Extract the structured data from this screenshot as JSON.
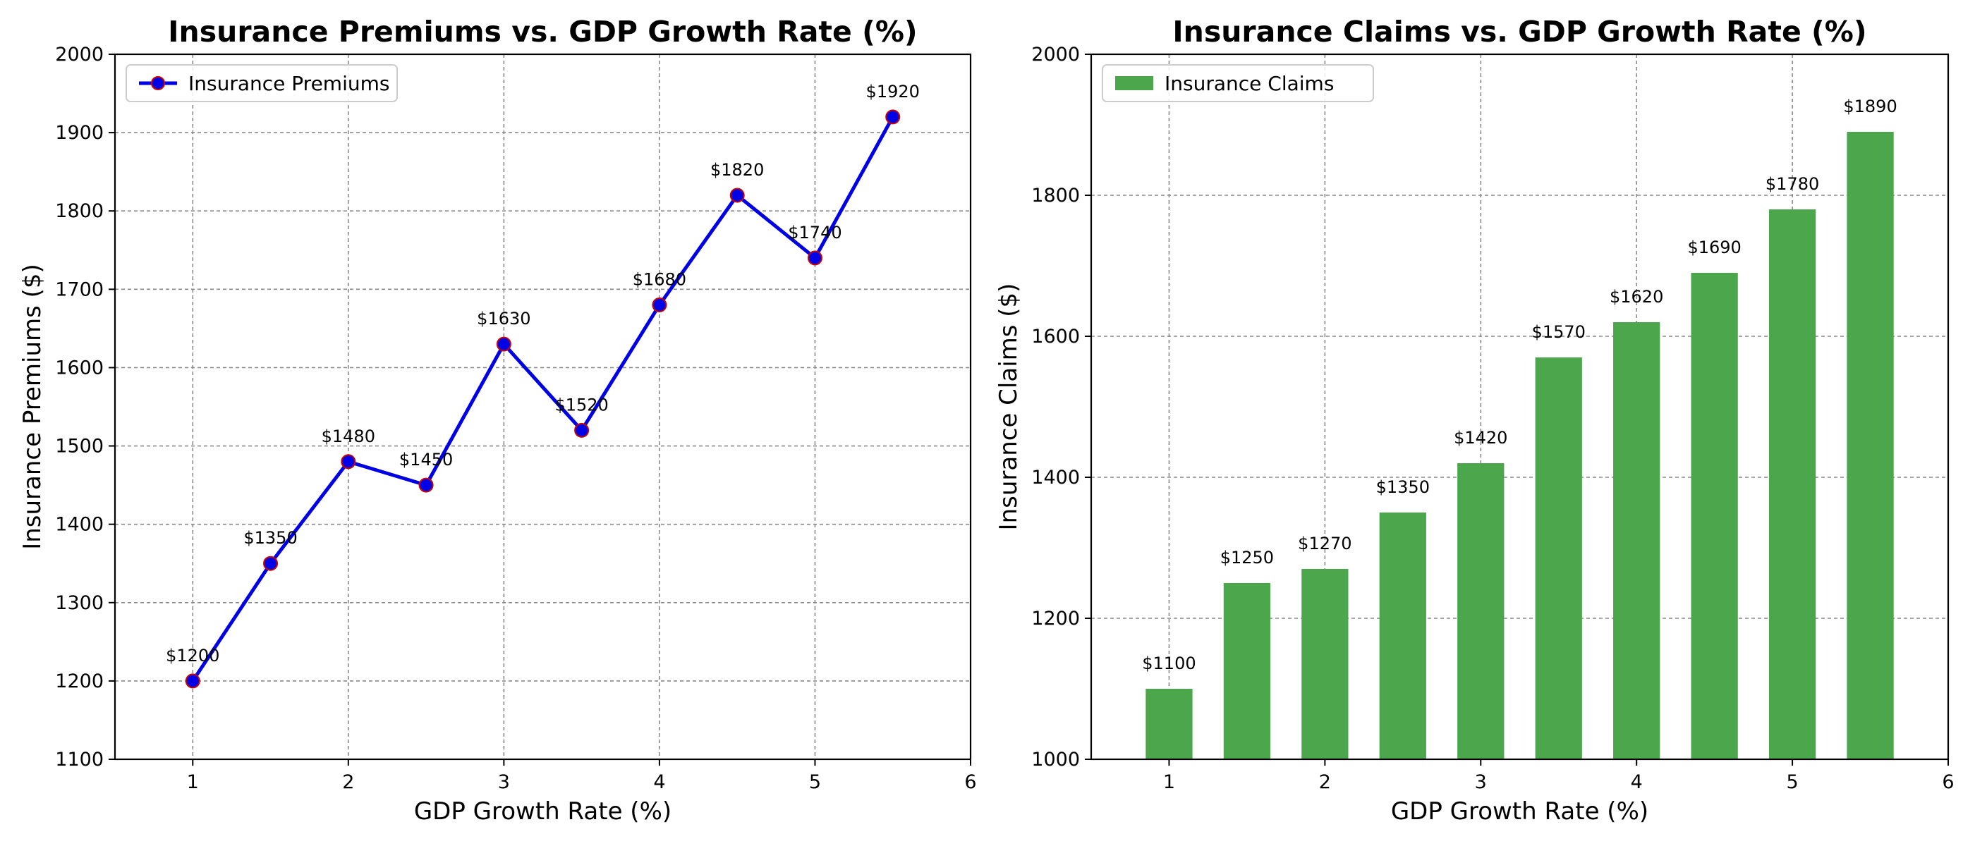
{
  "chart_data": [
    {
      "type": "line",
      "title": "Insurance Premiums vs. GDP Growth Rate (%)",
      "xlabel": "GDP Growth Rate (%)",
      "ylabel": "Insurance Premiums ($)",
      "xlim": [
        0.5,
        6
      ],
      "ylim": [
        1100,
        2000
      ],
      "xticks": [
        1,
        2,
        3,
        4,
        5,
        6
      ],
      "yticks": [
        1100,
        1200,
        1300,
        1400,
        1500,
        1600,
        1700,
        1800,
        1900,
        2000
      ],
      "grid": true,
      "legend_position": "upper-left",
      "series": [
        {
          "name": "Insurance Premiums",
          "color": "#0000e6",
          "marker_edge_color": "#cc0000",
          "x": [
            1,
            1.5,
            2,
            2.5,
            3,
            3.5,
            4,
            4.5,
            5,
            5.5
          ],
          "values": [
            1200,
            1350,
            1480,
            1450,
            1630,
            1520,
            1680,
            1820,
            1740,
            1920
          ],
          "labels": [
            "$1200",
            "$1350",
            "$1480",
            "$1450",
            "$1630",
            "$1520",
            "$1680",
            "$1820",
            "$1740",
            "$1920"
          ]
        }
      ]
    },
    {
      "type": "bar",
      "title": "Insurance Claims vs. GDP Growth Rate (%)",
      "xlabel": "GDP Growth Rate (%)",
      "ylabel": "Insurance Claims ($)",
      "xlim": [
        0.5,
        6
      ],
      "ylim": [
        1000,
        2000
      ],
      "xticks": [
        1,
        2,
        3,
        4,
        5,
        6
      ],
      "yticks": [
        1000,
        1200,
        1400,
        1600,
        1800,
        2000
      ],
      "grid": true,
      "legend_position": "upper-left",
      "series": [
        {
          "name": "Insurance Claims",
          "color": "#4ca64c",
          "bar_width": 0.3,
          "x": [
            1,
            1.5,
            2,
            2.5,
            3,
            3.5,
            4,
            4.5,
            5,
            5.5
          ],
          "values": [
            1100,
            1250,
            1270,
            1350,
            1420,
            1570,
            1620,
            1690,
            1780,
            1890
          ],
          "labels": [
            "$1100",
            "$1250",
            "$1270",
            "$1350",
            "$1420",
            "$1570",
            "$1620",
            "$1690",
            "$1780",
            "$1890"
          ]
        }
      ]
    }
  ]
}
